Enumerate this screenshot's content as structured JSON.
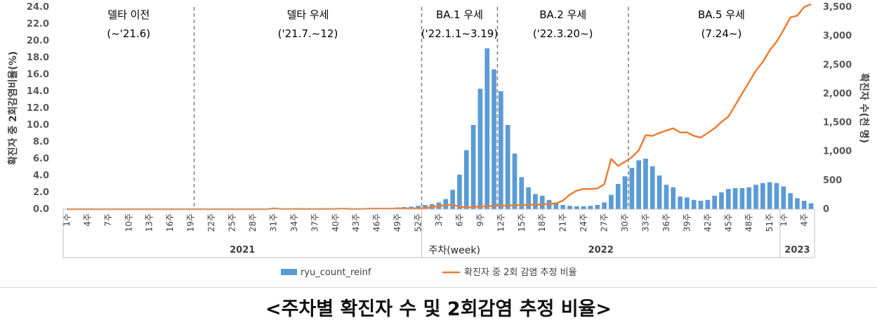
{
  "caption": "<주차별 확진자 수 및 2회감염 추정 비율>",
  "chart_data": {
    "type": "bar+line",
    "ylabel_left": "확진자 중 2회감염비율(%)",
    "ylabel_right": "확진자 수(천 명)",
    "ylim_left": [
      0,
      24
    ],
    "ylim_right": [
      0,
      3500
    ],
    "yticks_left": [
      "0.0",
      "2.0",
      "4.0",
      "6.0",
      "8.0",
      "10.0",
      "12.0",
      "14.0",
      "16.0",
      "18.0",
      "20.0",
      "22.0",
      "24.0"
    ],
    "yticks_right": [
      "0",
      "500",
      "1,000",
      "1,500",
      "2,000",
      "2,500",
      "3,000",
      "3,500"
    ],
    "week_label": "주차(week)",
    "years": [
      {
        "label": "2021",
        "start": 0,
        "end": 51
      },
      {
        "label": "2022",
        "start": 52,
        "end": 103
      },
      {
        "label": "2023",
        "start": 104,
        "end": 108
      }
    ],
    "tick_labels": [
      {
        "i": 0,
        "t": "1주"
      },
      {
        "i": 3,
        "t": "4주"
      },
      {
        "i": 6,
        "t": "7주"
      },
      {
        "i": 9,
        "t": "10주"
      },
      {
        "i": 12,
        "t": "13주"
      },
      {
        "i": 15,
        "t": "16주"
      },
      {
        "i": 18,
        "t": "19주"
      },
      {
        "i": 21,
        "t": "22주"
      },
      {
        "i": 24,
        "t": "25주"
      },
      {
        "i": 27,
        "t": "28주"
      },
      {
        "i": 30,
        "t": "31주"
      },
      {
        "i": 33,
        "t": "34주"
      },
      {
        "i": 36,
        "t": "37주"
      },
      {
        "i": 39,
        "t": "40주"
      },
      {
        "i": 42,
        "t": "43주"
      },
      {
        "i": 45,
        "t": "46주"
      },
      {
        "i": 48,
        "t": "49주"
      },
      {
        "i": 51,
        "t": "52주"
      },
      {
        "i": 54,
        "t": "3주"
      },
      {
        "i": 57,
        "t": "6주"
      },
      {
        "i": 60,
        "t": "9주"
      },
      {
        "i": 63,
        "t": "12주"
      },
      {
        "i": 66,
        "t": "15주"
      },
      {
        "i": 69,
        "t": "18주"
      },
      {
        "i": 72,
        "t": "21주"
      },
      {
        "i": 75,
        "t": "24주"
      },
      {
        "i": 78,
        "t": "27주"
      },
      {
        "i": 81,
        "t": "30주"
      },
      {
        "i": 84,
        "t": "33주"
      },
      {
        "i": 87,
        "t": "36주"
      },
      {
        "i": 90,
        "t": "39주"
      },
      {
        "i": 93,
        "t": "42주"
      },
      {
        "i": 96,
        "t": "45주"
      },
      {
        "i": 99,
        "t": "48주"
      },
      {
        "i": 102,
        "t": "51주"
      },
      {
        "i": 104,
        "t": "1주"
      },
      {
        "i": 107,
        "t": "4주"
      }
    ],
    "periods": [
      {
        "title": "델타 이전",
        "sub": "(~'21.6)",
        "start": 0,
        "end": 19
      },
      {
        "title": "델타 우세",
        "sub": "('21.7.~12)",
        "start": 19,
        "end": 52
      },
      {
        "title": "BA.1 우세",
        "sub": "('22.1.1~3.19)",
        "start": 52,
        "end": 63
      },
      {
        "title": "BA.2 우세",
        "sub": "('22.3.20~)",
        "start": 63,
        "end": 82
      },
      {
        "title": "BA.5 우세",
        "sub": "(7.24~)",
        "start": 82,
        "end": 109
      }
    ],
    "dividers": [
      19,
      52,
      63,
      82
    ],
    "series": [
      {
        "name": "ryu_count_reinf",
        "kind": "bar",
        "axis": "left",
        "color": "#5b9bd5",
        "values": [
          0,
          0,
          0,
          0,
          0,
          0,
          0,
          0,
          0,
          0,
          0,
          0,
          0,
          0,
          0,
          0,
          0,
          0,
          0,
          0,
          0,
          0,
          0,
          0,
          0,
          0,
          0,
          0,
          0,
          0,
          0.05,
          0.1,
          0.05,
          0.05,
          0.05,
          0.05,
          0.05,
          0.05,
          0.05,
          0.1,
          0.1,
          0.1,
          0.1,
          0.1,
          0.1,
          0.1,
          0.1,
          0.15,
          0.2,
          0.25,
          0.3,
          0.4,
          0.5,
          0.6,
          0.8,
          1.2,
          2.3,
          4.1,
          7.0,
          10.0,
          14.3,
          19.1,
          16.6,
          14.0,
          10.0,
          6.6,
          3.8,
          2.6,
          1.8,
          1.6,
          1.1,
          0.8,
          0.5,
          0.4,
          0.35,
          0.35,
          0.4,
          0.5,
          0.8,
          1.7,
          3.0,
          3.9,
          4.9,
          5.8,
          6.0,
          5.1,
          4.0,
          2.9,
          2.6,
          1.5,
          1.4,
          1.1,
          1.0,
          1.1,
          1.6,
          2.0,
          2.4,
          2.5,
          2.5,
          2.6,
          2.9,
          3.1,
          3.2,
          3.1,
          2.7,
          1.9,
          1.3,
          1.0,
          0.7
        ]
      },
      {
        "name": "확진자 중 2회 감염 추정 비율",
        "kind": "line",
        "axis": "right",
        "color": "#ed7d31",
        "values": [
          0,
          0,
          0,
          0,
          0,
          0,
          0,
          0,
          0,
          0,
          0,
          0,
          0,
          0,
          0,
          0,
          0,
          0,
          0,
          0,
          0,
          0,
          0,
          0,
          0,
          0,
          0,
          0,
          0,
          0,
          12,
          5,
          3,
          3,
          5,
          3,
          3,
          5,
          3,
          5,
          8,
          5,
          3,
          5,
          8,
          10,
          10,
          10,
          12,
          12,
          10,
          15,
          20,
          35,
          55,
          70,
          75,
          45,
          30,
          40,
          45,
          50,
          60,
          60,
          65,
          70,
          70,
          75,
          75,
          80,
          90,
          100,
          150,
          250,
          320,
          350,
          350,
          360,
          430,
          870,
          750,
          820,
          900,
          1020,
          1280,
          1270,
          1320,
          1360,
          1400,
          1330,
          1330,
          1270,
          1240,
          1320,
          1400,
          1510,
          1600,
          1800,
          2000,
          2200,
          2400,
          2550,
          2750,
          2900,
          3100,
          3320,
          3350,
          3500,
          3750
        ]
      }
    ],
    "legend": [
      {
        "label": "ryu_count_reinf",
        "kind": "bar",
        "color": "#5b9bd5"
      },
      {
        "label": "확진자 중 2회 감염 추정 비율",
        "kind": "line",
        "color": "#ed7d31"
      }
    ]
  }
}
